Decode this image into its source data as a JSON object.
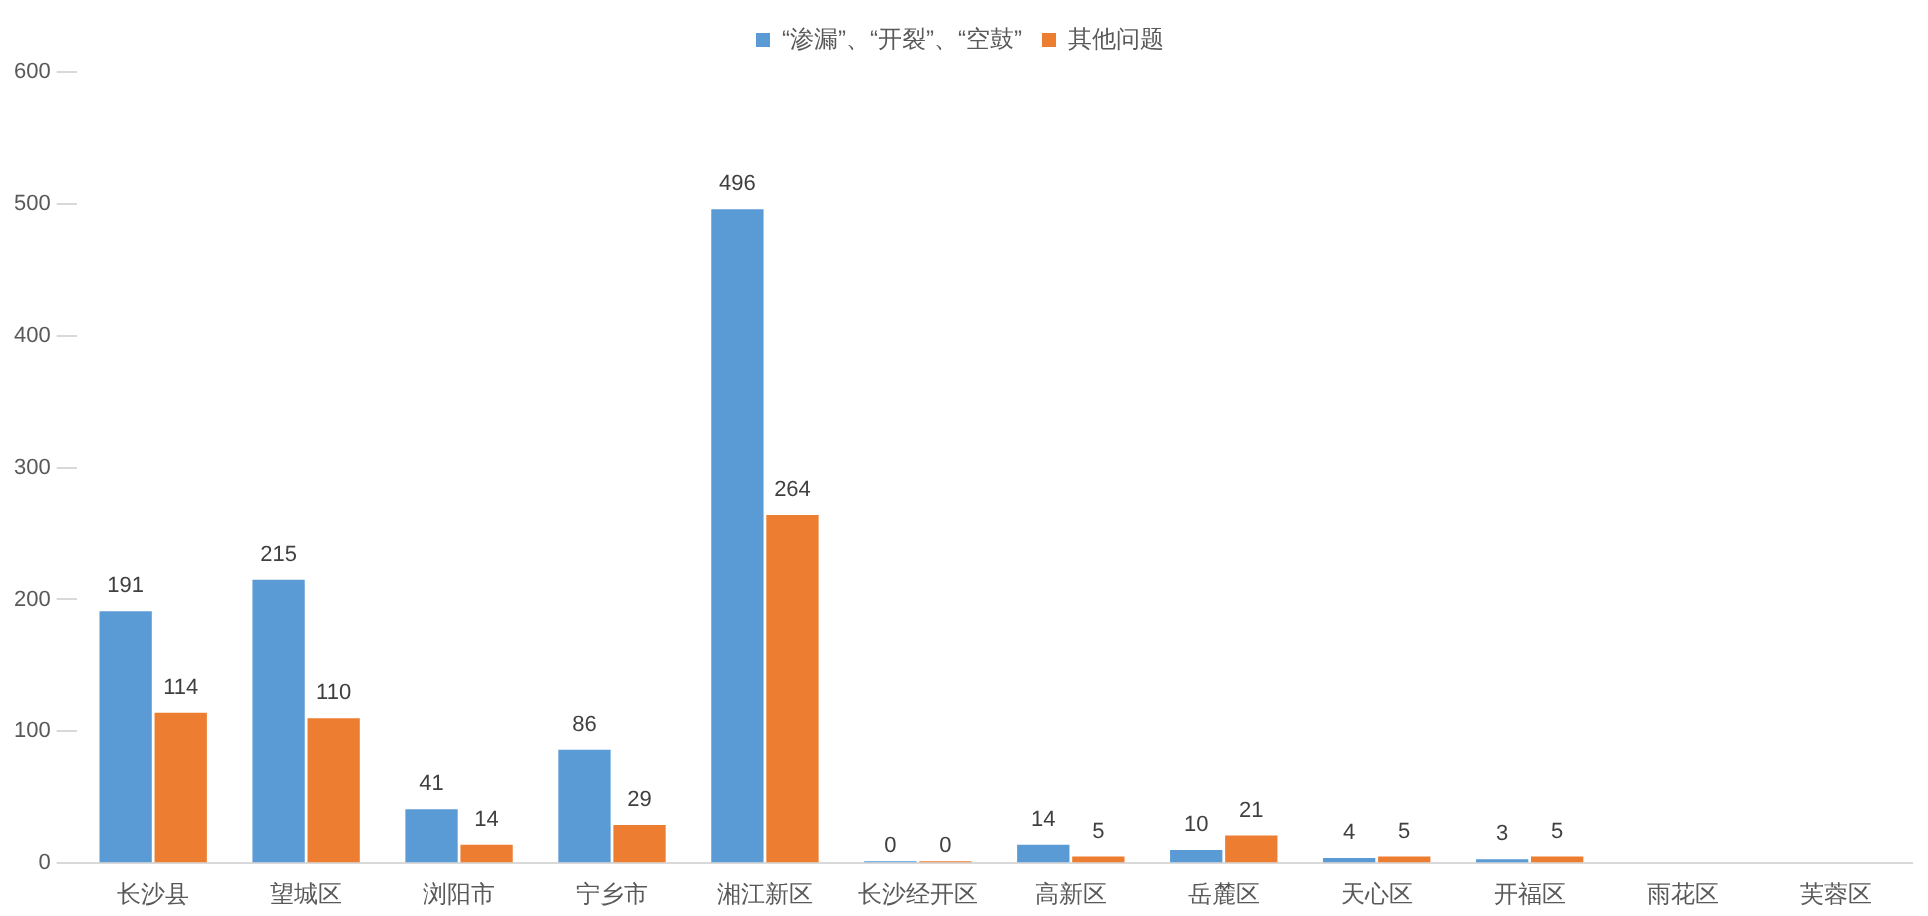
{
  "chart_data": {
    "type": "bar",
    "categories": [
      "长沙县",
      "望城区",
      "浏阳市",
      "宁乡市",
      "湘江新区",
      "长沙经开区",
      "高新区",
      "岳麓区",
      "天心区",
      "开福区",
      "雨花区",
      "芙蓉区"
    ],
    "series": [
      {
        "name": "“渗漏”、“开裂”、“空鼓”",
        "color": "#5b9bd5",
        "values": [
          191,
          215,
          41,
          86,
          496,
          0,
          14,
          10,
          4,
          3,
          null,
          null
        ]
      },
      {
        "name": "其他问题",
        "color": "#ed7d31",
        "values": [
          114,
          110,
          14,
          29,
          264,
          0,
          5,
          21,
          5,
          5,
          null,
          null
        ]
      }
    ],
    "ylim": [
      0,
      600
    ],
    "yticks": [
      0,
      100,
      200,
      300,
      400,
      500,
      600
    ],
    "grid": false,
    "legend": "top",
    "data_labels": true
  }
}
